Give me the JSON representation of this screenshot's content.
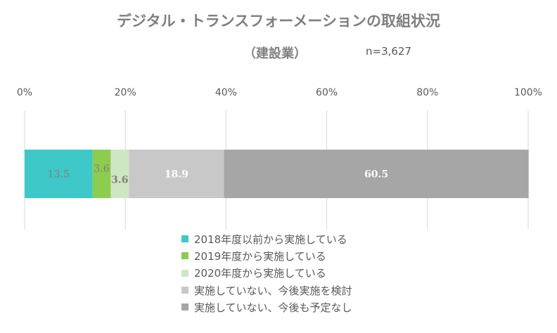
{
  "chart_data": {
    "type": "bar",
    "orientation": "horizontal-stacked-100",
    "title": "デジタル・トランスフォーメーションの取組状況",
    "subtitle": "（建設業）",
    "sample_size": "n=3,627",
    "xlim": [
      0,
      100
    ],
    "x_ticks": [
      "0%",
      "20%",
      "40%",
      "60%",
      "80%",
      "100%"
    ],
    "grid": true,
    "legend_position": "bottom",
    "series": [
      {
        "name": "2018年度以前から実施している",
        "value": 13.5,
        "label": "13.5",
        "color": "#3ec8c8",
        "label_color": "#7f7f7f"
      },
      {
        "name": "2019年度から実施している",
        "value": 3.6,
        "label": "3.6",
        "color": "#8ccc4f",
        "label_color": "#7f7f7f"
      },
      {
        "name": "2020年度から実施している",
        "value": 3.6,
        "label": "3.6",
        "color": "#cfe6c3",
        "label_color": "#7f7f7f"
      },
      {
        "name": "実施していない、今後実施を検討",
        "value": 18.9,
        "label": "18.9",
        "color": "#c8c8c8",
        "label_color": "#ffffff"
      },
      {
        "name": "実施していない、今後も予定なし",
        "value": 60.5,
        "label": "60.5",
        "color": "#a6a6a6",
        "label_color": "#ffffff"
      }
    ]
  }
}
